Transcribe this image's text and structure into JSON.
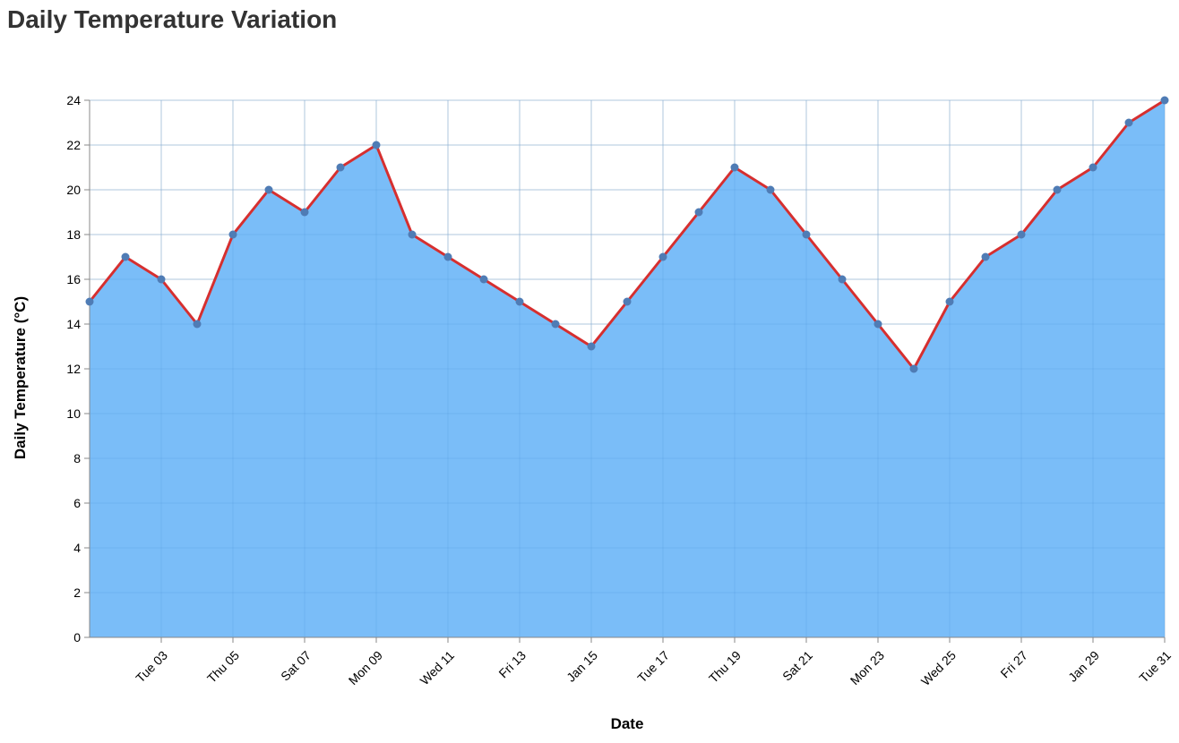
{
  "chart_data": {
    "type": "area",
    "title": "Daily Temperature Variation",
    "xlabel": "Date",
    "ylabel": "Daily Temperature (°C)",
    "ylim": [
      0,
      24
    ],
    "y_ticks": [
      0,
      2,
      4,
      6,
      8,
      10,
      12,
      14,
      16,
      18,
      20,
      22,
      24
    ],
    "grid": true,
    "x_tick_labels": [
      {
        "date": "2024-01-03",
        "label": "Tue 03"
      },
      {
        "date": "2024-01-05",
        "label": "Thu 05"
      },
      {
        "date": "2024-01-07",
        "label": "Sat 07"
      },
      {
        "date": "2024-01-09",
        "label": "Mon 09"
      },
      {
        "date": "2024-01-11",
        "label": "Wed 11"
      },
      {
        "date": "2024-01-13",
        "label": "Fri 13"
      },
      {
        "date": "2024-01-15",
        "label": "Jan 15"
      },
      {
        "date": "2024-01-17",
        "label": "Tue 17"
      },
      {
        "date": "2024-01-19",
        "label": "Thu 19"
      },
      {
        "date": "2024-01-21",
        "label": "Sat 21"
      },
      {
        "date": "2024-01-23",
        "label": "Mon 23"
      },
      {
        "date": "2024-01-25",
        "label": "Wed 25"
      },
      {
        "date": "2024-01-27",
        "label": "Fri 27"
      },
      {
        "date": "2024-01-29",
        "label": "Jan 29"
      },
      {
        "date": "2024-01-31",
        "label": "Tue 31"
      }
    ],
    "x": [
      "2024-01-01",
      "2024-01-02",
      "2024-01-03",
      "2024-01-04",
      "2024-01-05",
      "2024-01-06",
      "2024-01-07",
      "2024-01-08",
      "2024-01-09",
      "2024-01-10",
      "2024-01-11",
      "2024-01-12",
      "2024-01-13",
      "2024-01-14",
      "2024-01-15",
      "2024-01-16",
      "2024-01-17",
      "2024-01-18",
      "2024-01-19",
      "2024-01-20",
      "2024-01-21",
      "2024-01-22",
      "2024-01-23",
      "2024-01-24",
      "2024-01-25",
      "2024-01-26",
      "2024-01-27",
      "2024-01-28",
      "2024-01-29",
      "2024-01-30",
      "2024-01-31"
    ],
    "values": [
      15,
      17,
      16,
      14,
      18,
      20,
      19,
      21,
      22,
      18,
      17,
      16,
      15,
      14,
      13,
      15,
      17,
      19,
      21,
      20,
      18,
      16,
      14,
      12,
      15,
      17,
      18,
      20,
      21,
      23,
      24
    ],
    "colors": {
      "area": "#7abdf8",
      "line": "#d62f2f",
      "point": "#4f7cb5",
      "grid": "#dddddd",
      "axis": "#888888"
    }
  }
}
